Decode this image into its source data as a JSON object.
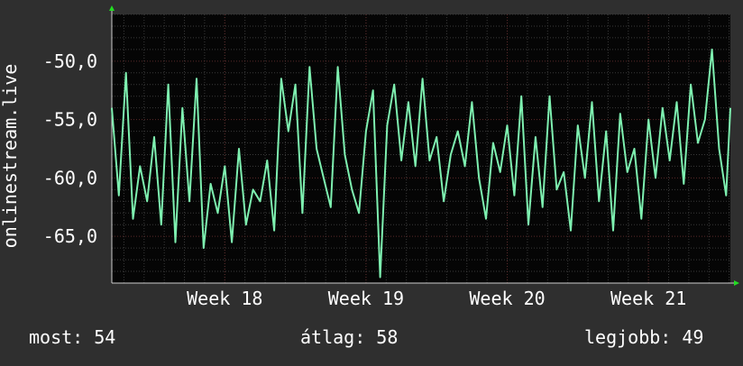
{
  "chart_data": {
    "type": "line",
    "ylabel": "onlinestream.live",
    "ylim": [
      -69,
      -46
    ],
    "y_ticks": [
      -50,
      -55,
      -60,
      -65
    ],
    "y_tick_labels": [
      "-50,0",
      "-55,0",
      "-60,0",
      "-65,0"
    ],
    "x_range_weeks": [
      17.2,
      21.58
    ],
    "x_ticks": [
      18,
      19,
      20,
      21
    ],
    "x_tick_labels": [
      "Week 18",
      "Week 19",
      "Week 20",
      "Week 21"
    ],
    "grid": true,
    "series": [
      {
        "color": "#7ef0b0",
        "x": [
          17.2,
          17.25,
          17.3,
          17.35,
          17.4,
          17.45,
          17.5,
          17.55,
          17.6,
          17.65,
          17.7,
          17.75,
          17.8,
          17.85,
          17.9,
          17.95,
          18.0,
          18.05,
          18.1,
          18.15,
          18.2,
          18.25,
          18.3,
          18.35,
          18.4,
          18.45,
          18.5,
          18.55,
          18.6,
          18.65,
          18.7,
          18.75,
          18.8,
          18.85,
          18.9,
          18.95,
          19.0,
          19.05,
          19.1,
          19.15,
          19.2,
          19.25,
          19.3,
          19.35,
          19.4,
          19.45,
          19.5,
          19.55,
          19.6,
          19.65,
          19.7,
          19.75,
          19.8,
          19.85,
          19.9,
          19.95,
          20.0,
          20.05,
          20.1,
          20.15,
          20.2,
          20.25,
          20.3,
          20.35,
          20.4,
          20.45,
          20.5,
          20.55,
          20.6,
          20.65,
          20.7,
          20.75,
          20.8,
          20.85,
          20.9,
          20.95,
          21.0,
          21.05,
          21.1,
          21.15,
          21.2,
          21.25,
          21.3,
          21.35,
          21.4,
          21.45,
          21.5,
          21.55,
          21.58
        ],
        "values": [
          -54.0,
          -61.5,
          -51.0,
          -63.5,
          -59.0,
          -62.0,
          -56.5,
          -64.0,
          -52.0,
          -65.5,
          -54.0,
          -62.0,
          -51.5,
          -66.0,
          -60.5,
          -63.0,
          -59.0,
          -65.5,
          -57.5,
          -64.0,
          -61.0,
          -62.0,
          -58.5,
          -64.5,
          -51.5,
          -56.0,
          -52.0,
          -63.0,
          -50.5,
          -57.5,
          -60.0,
          -62.5,
          -50.5,
          -58.0,
          -61.0,
          -63.0,
          -56.0,
          -52.5,
          -68.5,
          -55.5,
          -52.0,
          -58.5,
          -53.5,
          -59.0,
          -51.5,
          -58.5,
          -56.5,
          -62.0,
          -58.0,
          -56.0,
          -59.0,
          -53.5,
          -60.0,
          -63.5,
          -57.0,
          -59.5,
          -55.5,
          -61.5,
          -53.0,
          -64.0,
          -56.5,
          -62.5,
          -53.0,
          -61.0,
          -59.5,
          -64.5,
          -55.5,
          -60.0,
          -53.5,
          -62.0,
          -56.0,
          -64.5,
          -54.5,
          -59.5,
          -57.5,
          -63.5,
          -55.0,
          -60.0,
          -54.0,
          -58.5,
          -53.5,
          -60.5,
          -52.0,
          -57.0,
          -55.0,
          -49.0,
          -57.5,
          -61.5,
          -54.0
        ]
      }
    ]
  },
  "stats": {
    "current": "most: 54",
    "average": "átlag: 58",
    "best": "legjobb: 49"
  },
  "colors": {
    "background": "#2f2f2f",
    "plot_background": "#050505",
    "line": "#7ef0b0",
    "grid_major": "#5a2a2a",
    "grid_minor": "#3a3a3a",
    "text": "#ffffff",
    "arrow": "#22dd22"
  }
}
